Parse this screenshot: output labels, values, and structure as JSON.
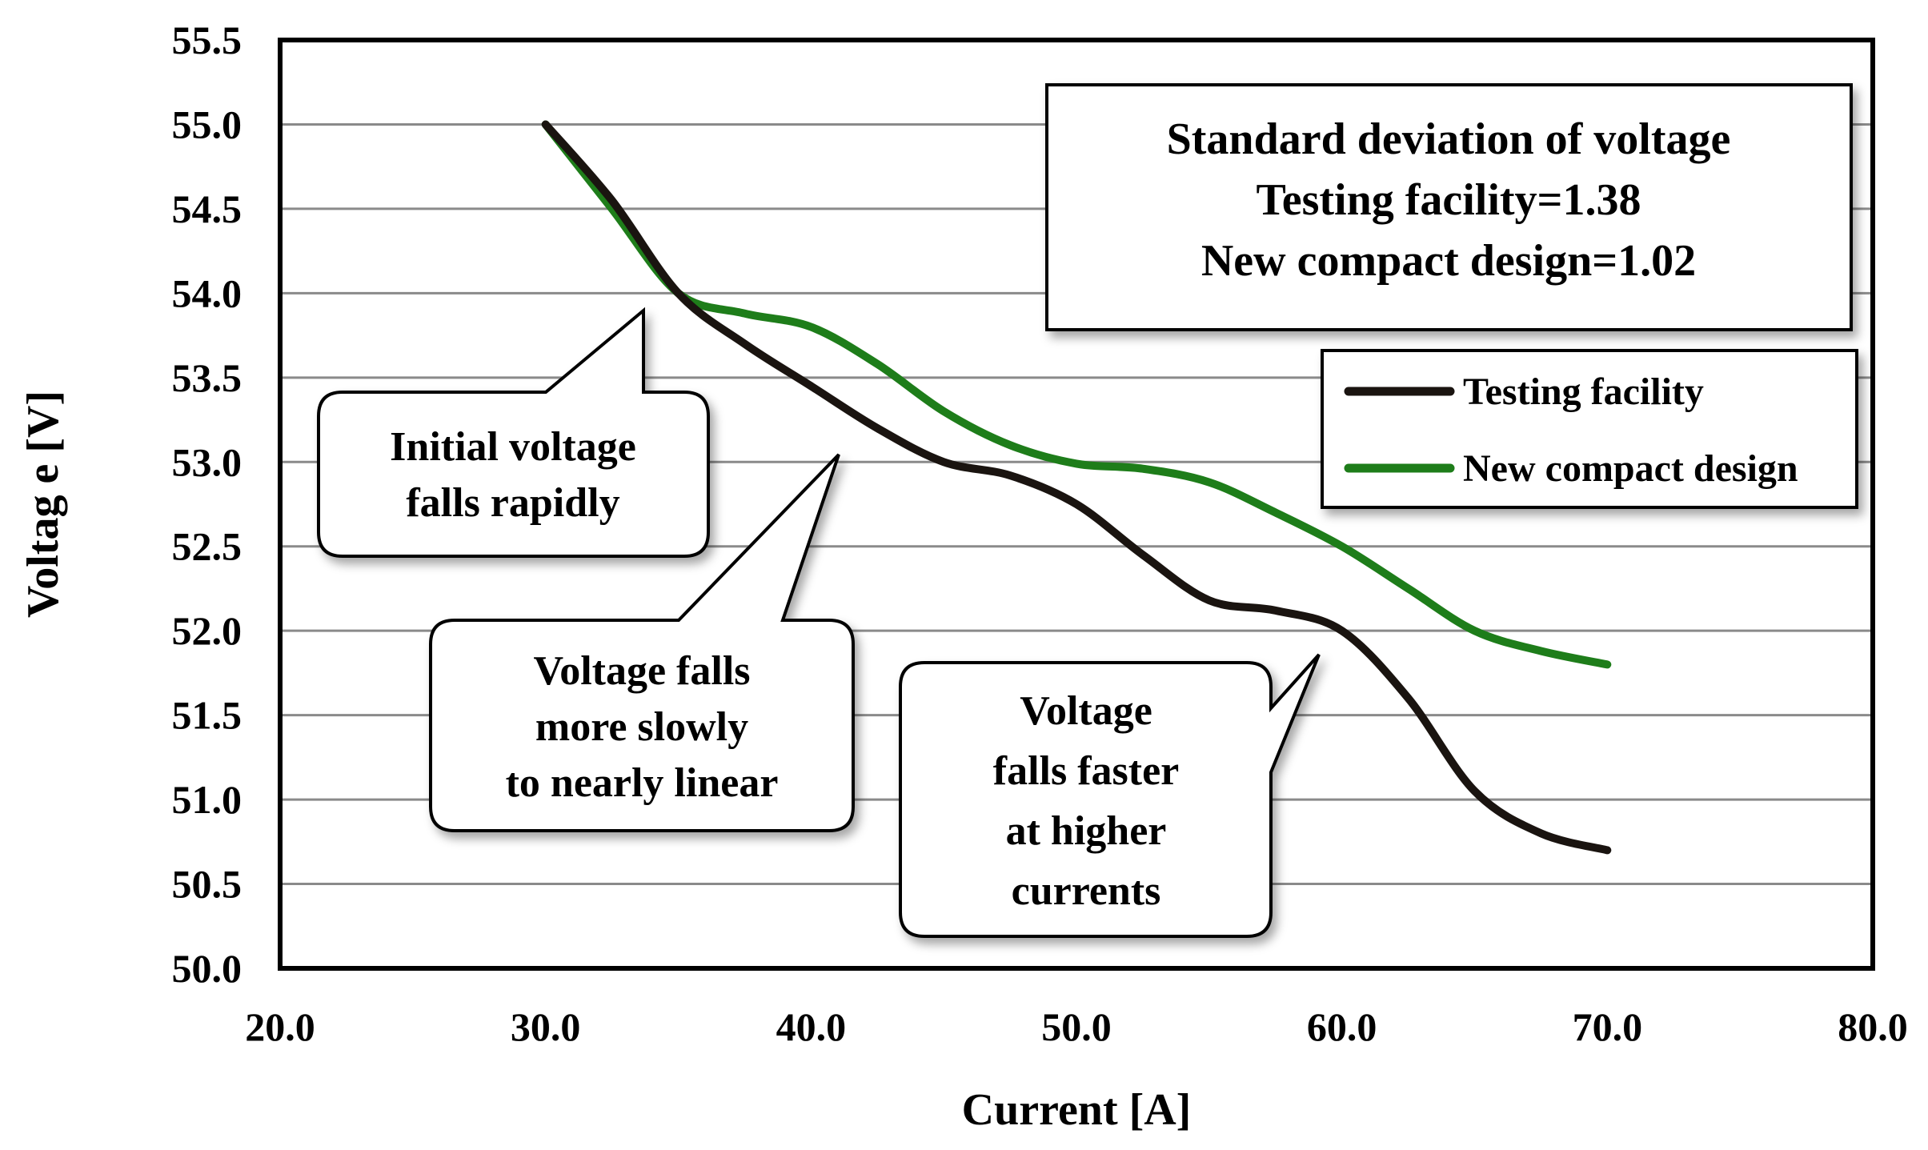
{
  "chart_data": {
    "type": "line",
    "title": "",
    "xlabel": "Current [A]",
    "ylabel": "Voltag e [V]",
    "xlim": [
      20.0,
      80.0
    ],
    "ylim": [
      50.0,
      55.5
    ],
    "x_ticks": [
      "20.0",
      "30.0",
      "40.0",
      "50.0",
      "60.0",
      "70.0",
      "80.0"
    ],
    "y_ticks": [
      "50.0",
      "50.5",
      "51.0",
      "51.5",
      "52.0",
      "52.5",
      "53.0",
      "53.5",
      "54.0",
      "54.5",
      "55.0",
      "55.5"
    ],
    "grid": "horizontal",
    "series": [
      {
        "name": "Testing facility",
        "color": "#1a1410",
        "points": [
          [
            30,
            55.0
          ],
          [
            32.5,
            54.55
          ],
          [
            35,
            54.0
          ],
          [
            37.5,
            53.7
          ],
          [
            40,
            53.45
          ],
          [
            42.5,
            53.2
          ],
          [
            45,
            53.0
          ],
          [
            47.5,
            52.92
          ],
          [
            50,
            52.75
          ],
          [
            52.5,
            52.45
          ],
          [
            55,
            52.18
          ],
          [
            57.5,
            52.12
          ],
          [
            60,
            52.0
          ],
          [
            62.5,
            51.6
          ],
          [
            65,
            51.05
          ],
          [
            67.5,
            50.8
          ],
          [
            70,
            50.7
          ]
        ]
      },
      {
        "name": "New compact design",
        "color": "#1e7d1a",
        "points": [
          [
            30,
            55.0
          ],
          [
            32.5,
            54.5
          ],
          [
            35,
            54.0
          ],
          [
            37.5,
            53.88
          ],
          [
            40,
            53.8
          ],
          [
            42.5,
            53.58
          ],
          [
            45,
            53.3
          ],
          [
            47.5,
            53.1
          ],
          [
            50,
            52.99
          ],
          [
            52.5,
            52.96
          ],
          [
            55,
            52.88
          ],
          [
            57.5,
            52.7
          ],
          [
            60,
            52.5
          ],
          [
            62.5,
            52.25
          ],
          [
            65,
            52.0
          ],
          [
            67.5,
            51.88
          ],
          [
            70,
            51.8
          ]
        ]
      }
    ],
    "legend": {
      "position": "top-right",
      "entries": [
        "Testing facility",
        "New compact design"
      ]
    },
    "stats_box": {
      "lines": [
        "Standard deviation of voltage",
        "Testing facility=1.38",
        "New compact design=1.02"
      ]
    },
    "annotations": [
      {
        "lines": [
          "Initial voltage",
          "falls rapidly"
        ],
        "points_to": [
          33.8,
          53.9
        ]
      },
      {
        "lines": [
          "Voltage falls",
          "more slowly",
          "to nearly linear"
        ],
        "points_to": [
          41.0,
          53.05
        ]
      },
      {
        "lines": [
          "Voltage",
          "falls faster",
          "at higher",
          "currents"
        ],
        "points_to": [
          59.2,
          51.85
        ]
      }
    ]
  }
}
